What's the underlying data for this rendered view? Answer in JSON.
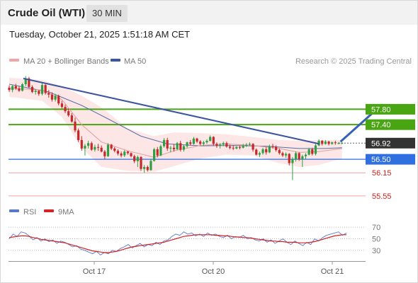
{
  "header": {
    "title": "Crude Oil (WTI)",
    "interval": "30 MIN"
  },
  "timestamp": "Tuesday, October 21, 2025 1:51:18 AM CET",
  "legend": {
    "bollinger": "MA 20 + Bollinger Bands",
    "ma50": "MA 50",
    "credit": "Research © 2025 Trading Central",
    "rsi": "RSI",
    "rsi_ma": "9MA"
  },
  "colors": {
    "resistance": "#4aa513",
    "current": "#333333",
    "pivot": "#2f6fdf",
    "support": "#d52020",
    "trendline": "#3c55a0",
    "bollinger": "#f5a5a5",
    "ma50": "#5570a8",
    "up": "#2ea043",
    "down": "#c62828",
    "rsi": "#5a78c8",
    "rsi_ma": "#d32222"
  },
  "levels": [
    {
      "value": 57.8,
      "label": "57.80",
      "type": "resistance"
    },
    {
      "value": 57.4,
      "label": "57.40",
      "type": "resistance"
    },
    {
      "value": 56.92,
      "label": "56.92",
      "type": "current"
    },
    {
      "value": 56.5,
      "label": "56.50",
      "type": "pivot"
    },
    {
      "value": 56.15,
      "label": "56.15",
      "type": "support"
    },
    {
      "value": 55.55,
      "label": "55.55",
      "type": "support"
    }
  ],
  "chart_data": [
    {
      "type": "candlestick",
      "title": "Crude Oil (WTI)",
      "interval": "30 MIN",
      "x_ticks": [
        "Oct 17",
        "Oct 20",
        "Oct 21"
      ],
      "y_range": [
        55.4,
        58.8
      ],
      "trendline": [
        [
          0,
          58.6
        ],
        [
          101,
          56.9
        ]
      ],
      "forecast_arrow": [
        [
          101,
          56.92
        ],
        [
          111,
          57.8
        ]
      ],
      "candles": [
        [
          58.36,
          58.42,
          58.25,
          58.3
        ],
        [
          58.3,
          58.44,
          58.24,
          58.4
        ],
        [
          58.4,
          58.46,
          58.3,
          58.34
        ],
        [
          58.34,
          58.4,
          58.25,
          58.28
        ],
        [
          58.28,
          58.48,
          58.26,
          58.45
        ],
        [
          58.45,
          58.66,
          58.4,
          58.6
        ],
        [
          58.6,
          58.64,
          58.35,
          58.38
        ],
        [
          58.38,
          58.42,
          58.22,
          58.25
        ],
        [
          58.25,
          58.32,
          58.18,
          58.28
        ],
        [
          58.28,
          58.3,
          58.15,
          58.2
        ],
        [
          58.2,
          58.48,
          58.16,
          58.43
        ],
        [
          58.43,
          58.45,
          58.18,
          58.22
        ],
        [
          58.22,
          58.3,
          58.1,
          58.18
        ],
        [
          58.18,
          58.24,
          58.0,
          58.05
        ],
        [
          58.05,
          58.2,
          58.0,
          58.15
        ],
        [
          58.15,
          58.18,
          57.9,
          57.95
        ],
        [
          57.95,
          58.02,
          57.82,
          57.86
        ],
        [
          57.86,
          57.92,
          57.7,
          57.75
        ],
        [
          57.75,
          57.82,
          57.6,
          57.64
        ],
        [
          57.64,
          57.7,
          57.45,
          57.48
        ],
        [
          57.48,
          57.58,
          57.2,
          57.25
        ],
        [
          57.25,
          57.3,
          56.95,
          57.0
        ],
        [
          57.0,
          57.1,
          56.72,
          56.78
        ],
        [
          56.78,
          56.9,
          56.6,
          56.85
        ],
        [
          56.85,
          56.98,
          56.78,
          56.92
        ],
        [
          56.92,
          56.96,
          56.72,
          56.75
        ],
        [
          56.75,
          56.88,
          56.7,
          56.82
        ],
        [
          56.82,
          56.9,
          56.72,
          56.8
        ],
        [
          56.8,
          56.86,
          56.68,
          56.7
        ],
        [
          56.7,
          56.74,
          56.5,
          56.58
        ],
        [
          56.58,
          56.92,
          56.56,
          56.88
        ],
        [
          56.88,
          56.9,
          56.74,
          56.78
        ],
        [
          56.78,
          56.82,
          56.68,
          56.72
        ],
        [
          56.72,
          56.76,
          56.6,
          56.65
        ],
        [
          56.65,
          56.7,
          56.55,
          56.6
        ],
        [
          56.6,
          56.74,
          56.56,
          56.7
        ],
        [
          56.7,
          56.72,
          56.62,
          56.66
        ],
        [
          56.66,
          56.68,
          56.55,
          56.58
        ],
        [
          56.58,
          56.62,
          56.4,
          56.45
        ],
        [
          56.45,
          56.6,
          56.3,
          56.56
        ],
        [
          56.56,
          56.58,
          56.2,
          56.25
        ],
        [
          56.25,
          56.35,
          56.15,
          56.3
        ],
        [
          56.3,
          56.34,
          56.18,
          56.22
        ],
        [
          56.22,
          56.5,
          56.2,
          56.46
        ],
        [
          56.46,
          56.8,
          56.44,
          56.76
        ],
        [
          56.76,
          56.82,
          56.55,
          56.6
        ],
        [
          56.6,
          56.88,
          56.58,
          56.84
        ],
        [
          56.84,
          57.05,
          56.8,
          57.0
        ],
        [
          57.0,
          57.06,
          56.72,
          56.78
        ],
        [
          56.78,
          56.85,
          56.68,
          56.8
        ],
        [
          56.8,
          56.9,
          56.7,
          56.76
        ],
        [
          56.76,
          56.95,
          56.74,
          56.92
        ],
        [
          56.92,
          56.98,
          56.7,
          56.75
        ],
        [
          56.75,
          56.88,
          56.7,
          56.84
        ],
        [
          56.84,
          56.96,
          56.8,
          56.94
        ],
        [
          56.94,
          57.0,
          56.86,
          56.9
        ],
        [
          56.9,
          57.08,
          56.88,
          57.04
        ],
        [
          57.04,
          57.06,
          56.92,
          56.96
        ],
        [
          56.96,
          57.0,
          56.86,
          56.9
        ],
        [
          56.9,
          56.98,
          56.84,
          56.94
        ],
        [
          56.94,
          57.02,
          56.9,
          56.98
        ],
        [
          56.98,
          57.12,
          56.96,
          57.08
        ],
        [
          57.08,
          57.1,
          56.86,
          56.9
        ],
        [
          56.9,
          56.94,
          56.8,
          56.85
        ],
        [
          56.85,
          56.92,
          56.78,
          56.88
        ],
        [
          56.88,
          56.96,
          56.84,
          56.92
        ],
        [
          56.92,
          56.96,
          56.8,
          56.83
        ],
        [
          56.83,
          56.88,
          56.76,
          56.8
        ],
        [
          56.8,
          56.86,
          56.74,
          56.78
        ],
        [
          56.78,
          56.84,
          56.76,
          56.82
        ],
        [
          56.82,
          56.86,
          56.76,
          56.8
        ],
        [
          56.8,
          56.9,
          56.78,
          56.86
        ],
        [
          56.86,
          56.92,
          56.82,
          56.88
        ],
        [
          56.88,
          56.94,
          56.84,
          56.9
        ],
        [
          56.9,
          56.92,
          56.7,
          56.75
        ],
        [
          56.75,
          56.78,
          56.6,
          56.62
        ],
        [
          56.62,
          56.7,
          56.56,
          56.66
        ],
        [
          56.66,
          56.8,
          56.62,
          56.76
        ],
        [
          56.76,
          56.82,
          56.62,
          56.68
        ],
        [
          56.68,
          56.88,
          56.66,
          56.84
        ],
        [
          56.84,
          56.9,
          56.78,
          56.82
        ],
        [
          56.82,
          56.86,
          56.7,
          56.74
        ],
        [
          56.74,
          56.78,
          56.62,
          56.66
        ],
        [
          56.66,
          56.7,
          56.56,
          56.6
        ],
        [
          56.6,
          56.68,
          56.54,
          56.64
        ],
        [
          56.64,
          56.66,
          56.34,
          56.4
        ],
        [
          56.4,
          56.56,
          55.96,
          56.5
        ],
        [
          56.5,
          56.7,
          56.44,
          56.66
        ],
        [
          56.66,
          56.68,
          56.46,
          56.5
        ],
        [
          56.5,
          56.62,
          56.3,
          56.58
        ],
        [
          56.58,
          56.66,
          56.5,
          56.62
        ],
        [
          56.62,
          56.8,
          56.6,
          56.76
        ],
        [
          56.76,
          56.8,
          56.6,
          56.64
        ],
        [
          56.64,
          56.9,
          56.6,
          56.86
        ],
        [
          56.86,
          57.02,
          56.84,
          56.98
        ],
        [
          56.98,
          57.0,
          56.86,
          56.9
        ],
        [
          56.9,
          57.0,
          56.88,
          56.96
        ],
        [
          56.96,
          56.98,
          56.86,
          56.9
        ],
        [
          56.9,
          56.96,
          56.88,
          56.94
        ],
        [
          56.94,
          56.98,
          56.88,
          56.92
        ],
        [
          56.92,
          56.95,
          56.89,
          56.92
        ],
        [
          56.92,
          56.94,
          56.9,
          56.92
        ]
      ],
      "ma20": [
        [
          0,
          58.35
        ],
        [
          10,
          58.3
        ],
        [
          16,
          58.05
        ],
        [
          22,
          57.4
        ],
        [
          28,
          56.95
        ],
        [
          36,
          56.72
        ],
        [
          44,
          56.55
        ],
        [
          50,
          56.72
        ],
        [
          58,
          56.86
        ],
        [
          66,
          56.9
        ],
        [
          74,
          56.86
        ],
        [
          82,
          56.78
        ],
        [
          88,
          56.68
        ],
        [
          94,
          56.7
        ],
        [
          101,
          56.78
        ]
      ],
      "ma50": [
        [
          0,
          58.45
        ],
        [
          12,
          58.25
        ],
        [
          22,
          57.9
        ],
        [
          30,
          57.55
        ],
        [
          40,
          57.1
        ],
        [
          48,
          56.9
        ],
        [
          58,
          56.85
        ],
        [
          68,
          56.86
        ],
        [
          78,
          56.84
        ],
        [
          88,
          56.78
        ],
        [
          96,
          56.78
        ],
        [
          101,
          56.8
        ]
      ],
      "bollinger_upper": [
        [
          0,
          58.62
        ],
        [
          10,
          58.56
        ],
        [
          16,
          58.4
        ],
        [
          22,
          58.15
        ],
        [
          28,
          57.85
        ],
        [
          36,
          57.3
        ],
        [
          44,
          57.1
        ],
        [
          50,
          57.2
        ],
        [
          58,
          57.18
        ],
        [
          66,
          57.15
        ],
        [
          74,
          57.08
        ],
        [
          82,
          57.0
        ],
        [
          88,
          56.98
        ],
        [
          94,
          57.0
        ],
        [
          101,
          57.0
        ]
      ],
      "bollinger_lower": [
        [
          0,
          58.12
        ],
        [
          10,
          58.02
        ],
        [
          16,
          57.6
        ],
        [
          22,
          56.8
        ],
        [
          28,
          56.3
        ],
        [
          36,
          56.2
        ],
        [
          44,
          56.18
        ],
        [
          50,
          56.32
        ],
        [
          58,
          56.52
        ],
        [
          66,
          56.62
        ],
        [
          74,
          56.6
        ],
        [
          82,
          56.4
        ],
        [
          88,
          56.3
        ],
        [
          94,
          56.35
        ],
        [
          101,
          56.52
        ]
      ]
    },
    {
      "type": "line",
      "title": "RSI",
      "y_range": [
        15,
        80
      ],
      "y_ticks": [
        70,
        50,
        30
      ],
      "series": [
        {
          "name": "RSI",
          "values": [
            50,
            58,
            54,
            62,
            60,
            55,
            48,
            52,
            46,
            50,
            45,
            48,
            42,
            46,
            44,
            40,
            36,
            38,
            32,
            30,
            27,
            24,
            28,
            22,
            26,
            24,
            30,
            28,
            33,
            36,
            40,
            34,
            38,
            42,
            36,
            40,
            38,
            44,
            40,
            46,
            48,
            54,
            58,
            56,
            62,
            58,
            60,
            55,
            58,
            54,
            60,
            56,
            58,
            54,
            52,
            56,
            50,
            54,
            52,
            56,
            50,
            52,
            48,
            46,
            50,
            44,
            48,
            42,
            46,
            50,
            44,
            40,
            46,
            42,
            38,
            44,
            40,
            50,
            46,
            52,
            56,
            58,
            60,
            62,
            56,
            60
          ]
        },
        {
          "name": "9MA",
          "values": [
            52,
            53,
            54,
            55,
            55,
            54,
            52,
            51,
            49,
            48,
            47,
            46,
            45,
            44,
            43,
            41,
            39,
            37,
            35,
            33,
            31,
            29,
            28,
            27,
            26,
            26,
            27,
            28,
            30,
            32,
            34,
            36,
            37,
            38,
            39,
            40,
            41,
            42,
            43,
            44,
            46,
            48,
            50,
            52,
            54,
            55,
            56,
            57,
            57,
            57,
            57,
            57,
            56,
            56,
            55,
            55,
            54,
            53,
            53,
            52,
            52,
            51,
            50,
            49,
            48,
            47,
            46,
            46,
            45,
            45,
            44,
            44,
            44,
            43,
            43,
            43,
            44,
            45,
            47,
            49,
            51,
            53,
            55,
            56,
            57,
            57
          ]
        }
      ]
    }
  ]
}
